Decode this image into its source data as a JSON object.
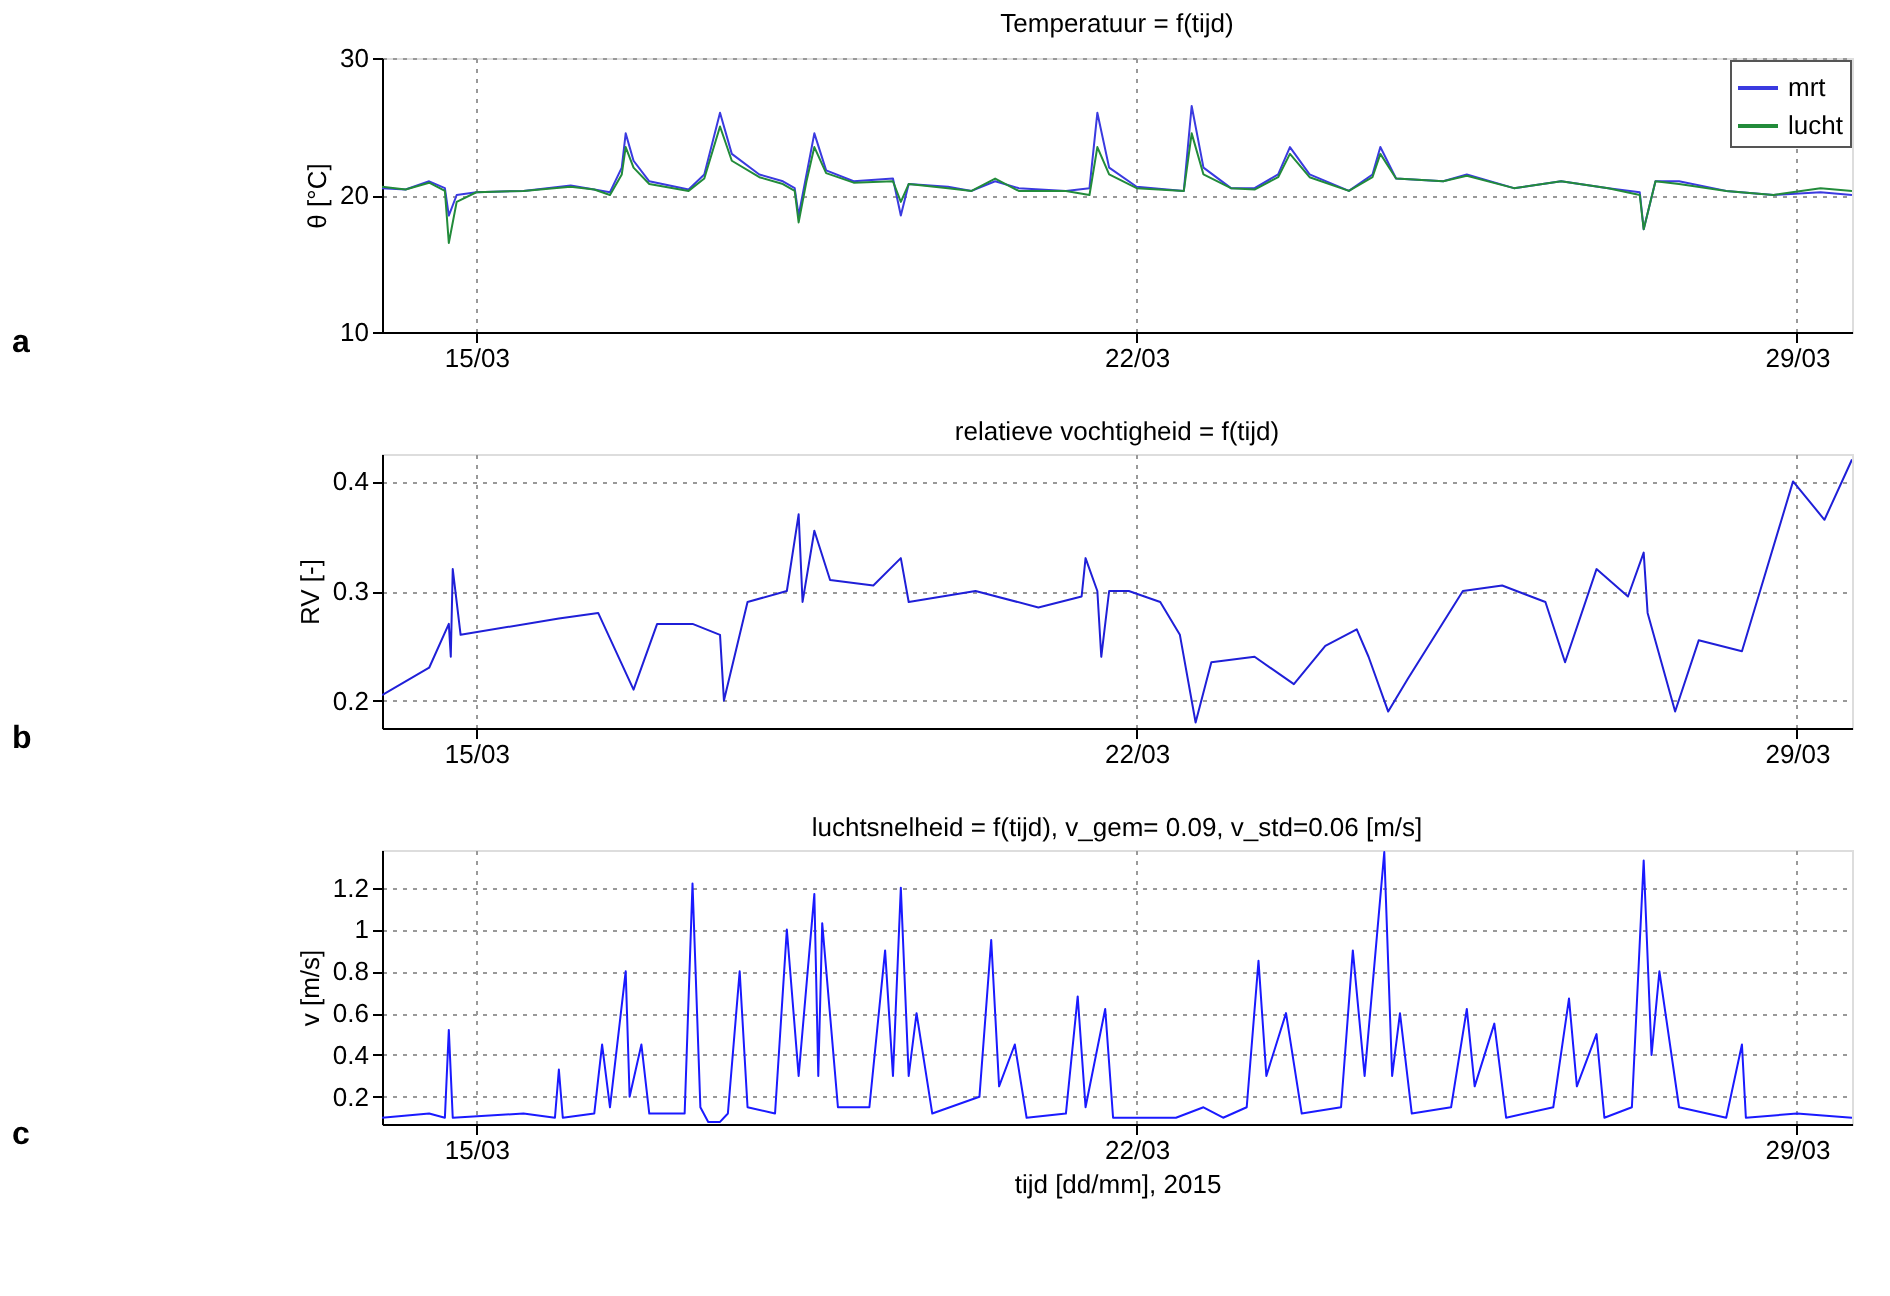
{
  "chart_data": [
    {
      "type": "line",
      "title": "Temperatuur = f(tijd)",
      "ylabel": "θ [°C]",
      "annotations": [
        "a"
      ],
      "legend": "top right",
      "grid": true,
      "line_style": "solid",
      "marker": "none",
      "xlim": [
        "2015-03-14T00:00",
        "2015-03-29T14:00"
      ],
      "xticks": [
        {
          "value": "2015-03-15",
          "label": "15/03"
        },
        {
          "value": "2015-03-22",
          "label": "22/03"
        },
        {
          "value": "2015-03-29",
          "label": "29/03"
        }
      ],
      "ylim": [
        10,
        30
      ],
      "yticks": [
        10,
        20,
        30
      ],
      "x": [
        "2015-03-14T00:00",
        "2015-03-14T06:00",
        "2015-03-14T12:00",
        "2015-03-14T16:00",
        "2015-03-14T17:00",
        "2015-03-14T19:00",
        "2015-03-15T00:00",
        "2015-03-15T12:00",
        "2015-03-16T00:00",
        "2015-03-16T06:00",
        "2015-03-16T10:00",
        "2015-03-16T13:00",
        "2015-03-16T14:00",
        "2015-03-16T16:00",
        "2015-03-16T20:00",
        "2015-03-17T06:00",
        "2015-03-17T10:00",
        "2015-03-17T14:00",
        "2015-03-17T17:00",
        "2015-03-18T00:00",
        "2015-03-18T06:00",
        "2015-03-18T09:00",
        "2015-03-18T10:00",
        "2015-03-18T12:00",
        "2015-03-18T14:00",
        "2015-03-18T17:00",
        "2015-03-19T00:00",
        "2015-03-19T10:00",
        "2015-03-19T12:00",
        "2015-03-19T14:00",
        "2015-03-20T00:00",
        "2015-03-20T06:00",
        "2015-03-20T12:00",
        "2015-03-20T18:00",
        "2015-03-21T06:00",
        "2015-03-21T12:00",
        "2015-03-21T14:00",
        "2015-03-21T17:00",
        "2015-03-22T00:00",
        "2015-03-22T12:00",
        "2015-03-22T14:00",
        "2015-03-22T17:00",
        "2015-03-23T00:00",
        "2015-03-23T06:00",
        "2015-03-23T12:00",
        "2015-03-23T15:00",
        "2015-03-23T20:00",
        "2015-03-24T06:00",
        "2015-03-24T12:00",
        "2015-03-24T14:00",
        "2015-03-24T18:00",
        "2015-03-25T06:00",
        "2015-03-25T12:00",
        "2015-03-26T00:00",
        "2015-03-26T12:00",
        "2015-03-27T00:00",
        "2015-03-27T08:00",
        "2015-03-27T09:00",
        "2015-03-27T12:00",
        "2015-03-27T18:00",
        "2015-03-28T06:00",
        "2015-03-28T18:00",
        "2015-03-29T06:00",
        "2015-03-29T14:00"
      ],
      "series": [
        {
          "name": "mrt",
          "color": "#3a3ae0",
          "values": [
            20.5,
            20.4,
            21.0,
            20.5,
            18.5,
            20.0,
            20.2,
            20.3,
            20.7,
            20.4,
            20.2,
            22.0,
            24.5,
            22.5,
            21.0,
            20.4,
            21.5,
            26.0,
            23.0,
            21.5,
            21.0,
            20.5,
            18.5,
            21.5,
            24.5,
            21.8,
            21.0,
            21.2,
            18.5,
            20.8,
            20.6,
            20.3,
            21.0,
            20.5,
            20.3,
            20.5,
            26.0,
            22.0,
            20.6,
            20.3,
            26.5,
            22.0,
            20.5,
            20.5,
            21.5,
            23.5,
            21.5,
            20.3,
            21.5,
            23.5,
            21.2,
            21.0,
            21.5,
            20.5,
            21.0,
            20.5,
            20.2,
            17.5,
            21.0,
            21.0,
            20.3,
            20.0,
            20.2,
            20.0
          ]
        },
        {
          "name": "lucht",
          "color": "#228b3a",
          "values": [
            20.6,
            20.4,
            20.9,
            20.3,
            16.5,
            19.5,
            20.2,
            20.3,
            20.6,
            20.4,
            20.0,
            21.5,
            23.5,
            22.0,
            20.8,
            20.3,
            21.2,
            25.0,
            22.5,
            21.3,
            20.8,
            20.3,
            18.0,
            21.0,
            23.5,
            21.6,
            20.9,
            21.0,
            19.5,
            20.8,
            20.5,
            20.3,
            21.2,
            20.3,
            20.3,
            20.0,
            23.5,
            21.5,
            20.5,
            20.3,
            24.5,
            21.5,
            20.5,
            20.4,
            21.3,
            23.0,
            21.3,
            20.3,
            21.3,
            23.0,
            21.2,
            21.0,
            21.4,
            20.5,
            21.0,
            20.5,
            20.0,
            17.5,
            21.0,
            20.8,
            20.3,
            20.0,
            20.5,
            20.3
          ]
        }
      ]
    },
    {
      "type": "line",
      "title": "relatieve vochtigheid = f(tijd)",
      "ylabel": "RV [-]",
      "annotations": [
        "b"
      ],
      "grid": true,
      "line_style": "solid",
      "marker": "none",
      "xlim": [
        "2015-03-14T00:00",
        "2015-03-29T14:00"
      ],
      "xticks": [
        {
          "value": "2015-03-15",
          "label": "15/03"
        },
        {
          "value": "2015-03-22",
          "label": "22/03"
        },
        {
          "value": "2015-03-29",
          "label": "29/03"
        }
      ],
      "ylim": [
        0.175,
        0.425
      ],
      "yticks": [
        0.2,
        0.3,
        0.4
      ],
      "x": [
        "2015-03-14T00:00",
        "2015-03-14T12:00",
        "2015-03-14T17:00",
        "2015-03-14T17:30",
        "2015-03-14T18:00",
        "2015-03-14T20:00",
        "2015-03-15T21:00",
        "2015-03-16T07:00",
        "2015-03-16T16:00",
        "2015-03-16T22:00",
        "2015-03-17T07:00",
        "2015-03-17T14:00",
        "2015-03-17T15:00",
        "2015-03-17T21:00",
        "2015-03-18T07:00",
        "2015-03-18T10:00",
        "2015-03-18T11:00",
        "2015-03-18T14:00",
        "2015-03-18T18:00",
        "2015-03-19T05:00",
        "2015-03-19T12:00",
        "2015-03-19T14:00",
        "2015-03-20T07:00",
        "2015-03-20T23:00",
        "2015-03-21T10:00",
        "2015-03-21T11:00",
        "2015-03-21T14:00",
        "2015-03-21T15:00",
        "2015-03-21T17:00",
        "2015-03-21T22:00",
        "2015-03-22T06:00",
        "2015-03-22T11:00",
        "2015-03-22T15:00",
        "2015-03-22T19:00",
        "2015-03-23T06:00",
        "2015-03-23T16:00",
        "2015-03-24T00:00",
        "2015-03-24T08:00",
        "2015-03-24T11:00",
        "2015-03-24T16:00",
        "2015-03-24T21:00",
        "2015-03-25T11:00",
        "2015-03-25T21:00",
        "2015-03-26T08:00",
        "2015-03-26T13:00",
        "2015-03-26T21:00",
        "2015-03-27T05:00",
        "2015-03-27T09:00",
        "2015-03-27T10:00",
        "2015-03-27T17:00",
        "2015-03-27T23:00",
        "2015-03-28T10:00",
        "2015-03-28T23:00",
        "2015-03-29T07:00",
        "2015-03-29T14:00"
      ],
      "series": [
        {
          "color": "#1f1fd8",
          "values": [
            0.205,
            0.23,
            0.27,
            0.24,
            0.32,
            0.26,
            0.275,
            0.28,
            0.21,
            0.27,
            0.27,
            0.26,
            0.2,
            0.29,
            0.3,
            0.37,
            0.29,
            0.355,
            0.31,
            0.305,
            0.33,
            0.29,
            0.3,
            0.285,
            0.295,
            0.33,
            0.3,
            0.24,
            0.3,
            0.3,
            0.29,
            0.26,
            0.18,
            0.235,
            0.24,
            0.215,
            0.25,
            0.265,
            0.24,
            0.19,
            0.22,
            0.3,
            0.305,
            0.29,
            0.235,
            0.32,
            0.295,
            0.335,
            0.28,
            0.19,
            0.255,
            0.245,
            0.4,
            0.365,
            0.42
          ]
        }
      ]
    },
    {
      "type": "line",
      "title": "luchtsnelheid = f(tijd), v_gem= 0.09, v_std=0.06 [m/s]",
      "xlabel": "tijd [dd/mm], 2015",
      "ylabel": "v [m/s]",
      "annotations": [
        "c"
      ],
      "grid": true,
      "line_style": "solid",
      "marker": "none",
      "xlim": [
        "2015-03-14T00:00",
        "2015-03-29T14:00"
      ],
      "xticks": [
        {
          "value": "2015-03-15",
          "label": "15/03"
        },
        {
          "value": "2015-03-22",
          "label": "22/03"
        },
        {
          "value": "2015-03-29",
          "label": "29/03"
        }
      ],
      "ylim": [
        0.07,
        1.38
      ],
      "yticks": [
        0.2,
        0.4,
        0.6,
        0.8,
        1,
        1.2
      ],
      "x": [
        "2015-03-14T00:00",
        "2015-03-14T12:00",
        "2015-03-14T16:00",
        "2015-03-14T17:00",
        "2015-03-14T18:00",
        "2015-03-15T12:00",
        "2015-03-15T20:00",
        "2015-03-15T21:00",
        "2015-03-15T22:00",
        "2015-03-16T06:00",
        "2015-03-16T08:00",
        "2015-03-16T10:00",
        "2015-03-16T14:00",
        "2015-03-16T15:00",
        "2015-03-16T18:00",
        "2015-03-16T20:00",
        "2015-03-17T05:00",
        "2015-03-17T07:00",
        "2015-03-17T09:00",
        "2015-03-17T11:00",
        "2015-03-17T14:00",
        "2015-03-17T16:00",
        "2015-03-17T19:00",
        "2015-03-17T21:00",
        "2015-03-18T04:00",
        "2015-03-18T07:00",
        "2015-03-18T10:00",
        "2015-03-18T14:00",
        "2015-03-18T15:00",
        "2015-03-18T16:00",
        "2015-03-18T20:00",
        "2015-03-19T04:00",
        "2015-03-19T08:00",
        "2015-03-19T10:00",
        "2015-03-19T12:00",
        "2015-03-19T14:00",
        "2015-03-19T16:00",
        "2015-03-19T20:00",
        "2015-03-20T08:00",
        "2015-03-20T11:00",
        "2015-03-20T13:00",
        "2015-03-20T17:00",
        "2015-03-20T20:00",
        "2015-03-21T06:00",
        "2015-03-21T09:00",
        "2015-03-21T11:00",
        "2015-03-21T16:00",
        "2015-03-21T18:00",
        "2015-03-22T10:00",
        "2015-03-22T17:00",
        "2015-03-22T22:00",
        "2015-03-23T04:00",
        "2015-03-23T07:00",
        "2015-03-23T09:00",
        "2015-03-23T14:00",
        "2015-03-23T18:00",
        "2015-03-24T04:00",
        "2015-03-24T07:00",
        "2015-03-24T10:00",
        "2015-03-24T15:00",
        "2015-03-24T17:00",
        "2015-03-24T19:00",
        "2015-03-24T22:00",
        "2015-03-25T08:00",
        "2015-03-25T12:00",
        "2015-03-25T14:00",
        "2015-03-25T19:00",
        "2015-03-25T22:00",
        "2015-03-26T10:00",
        "2015-03-26T14:00",
        "2015-03-26T16:00",
        "2015-03-26T21:00",
        "2015-03-26T23:00",
        "2015-03-27T06:00",
        "2015-03-27T09:00",
        "2015-03-27T11:00",
        "2015-03-27T13:00",
        "2015-03-27T18:00",
        "2015-03-28T06:00",
        "2015-03-28T10:00",
        "2015-03-28T11:00",
        "2015-03-29T00:00",
        "2015-03-29T14:00"
      ],
      "series": [
        {
          "color": "#1a1aff",
          "values": [
            0.1,
            0.12,
            0.1,
            0.52,
            0.1,
            0.12,
            0.1,
            0.33,
            0.1,
            0.12,
            0.45,
            0.15,
            0.8,
            0.2,
            0.45,
            0.12,
            0.12,
            1.22,
            0.15,
            0.08,
            0.08,
            0.12,
            0.8,
            0.15,
            0.12,
            1.0,
            0.3,
            1.17,
            0.3,
            1.03,
            0.15,
            0.15,
            0.9,
            0.3,
            1.2,
            0.3,
            0.6,
            0.12,
            0.2,
            0.95,
            0.25,
            0.45,
            0.1,
            0.12,
            0.68,
            0.15,
            0.62,
            0.1,
            0.1,
            0.15,
            0.1,
            0.15,
            0.85,
            0.3,
            0.6,
            0.12,
            0.15,
            0.9,
            0.3,
            1.37,
            0.3,
            0.6,
            0.12,
            0.15,
            0.62,
            0.25,
            0.55,
            0.1,
            0.15,
            0.67,
            0.25,
            0.5,
            0.1,
            0.15,
            1.33,
            0.4,
            0.8,
            0.15,
            0.1,
            0.45,
            0.1,
            0.12,
            0.1
          ]
        }
      ]
    }
  ]
}
